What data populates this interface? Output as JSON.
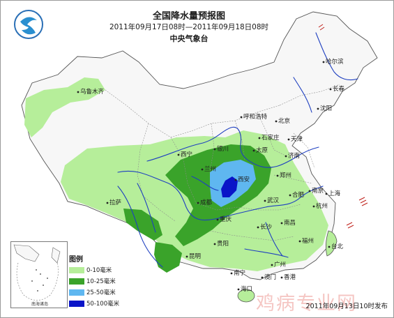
{
  "map": {
    "title": "全国降水量预报图",
    "period": "2011年09月17日08时—2011年09月18日08时",
    "agency": "中央气象台",
    "issued": "2011年09月13日10时发布",
    "watermark": "鸡病专业网",
    "inset_label": "南海诸岛"
  },
  "legend": {
    "title": "图例",
    "items": [
      {
        "label": "0-10毫米",
        "color": "#b6ee9a"
      },
      {
        "label": "10-25毫米",
        "color": "#3aa32a"
      },
      {
        "label": "25-50毫米",
        "color": "#5fb7f0"
      },
      {
        "label": "50-100毫米",
        "color": "#0a14c8"
      }
    ]
  },
  "cities": [
    {
      "name": "哈尔滨"
    },
    {
      "name": "长春"
    },
    {
      "name": "沈阳"
    },
    {
      "name": "乌鲁木齐"
    },
    {
      "name": "呼和浩特"
    },
    {
      "name": "北京"
    },
    {
      "name": "天津"
    },
    {
      "name": "石家庄"
    },
    {
      "name": "银川"
    },
    {
      "name": "太原"
    },
    {
      "name": "济南"
    },
    {
      "name": "西宁"
    },
    {
      "name": "兰州"
    },
    {
      "name": "西安"
    },
    {
      "name": "郑州"
    },
    {
      "name": "合肥"
    },
    {
      "name": "南京"
    },
    {
      "name": "上海"
    },
    {
      "name": "拉萨"
    },
    {
      "name": "成都"
    },
    {
      "name": "武汉"
    },
    {
      "name": "杭州"
    },
    {
      "name": "重庆"
    },
    {
      "name": "长沙"
    },
    {
      "name": "南昌"
    },
    {
      "name": "贵阳"
    },
    {
      "name": "福州"
    },
    {
      "name": "台北"
    },
    {
      "name": "昆明"
    },
    {
      "name": "广州"
    },
    {
      "name": "南宁"
    },
    {
      "name": "澳门"
    },
    {
      "name": "香港"
    },
    {
      "name": "海口"
    }
  ]
}
